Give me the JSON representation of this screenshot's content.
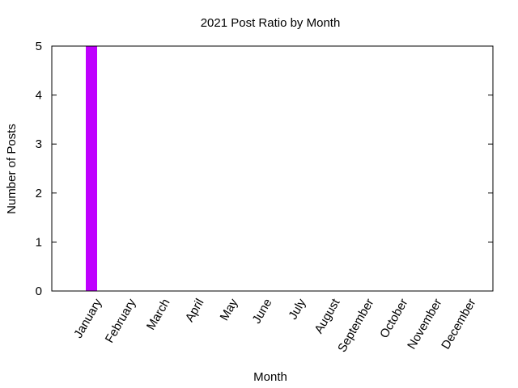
{
  "chart_data": {
    "type": "bar",
    "title": "2021 Post Ratio by Month",
    "xlabel": "Month",
    "ylabel": "Number of Posts",
    "categories": [
      "January",
      "February",
      "March",
      "April",
      "May",
      "June",
      "July",
      "August",
      "September",
      "October",
      "November",
      "December"
    ],
    "values": [
      5,
      0,
      0,
      0,
      0,
      0,
      0,
      0,
      0,
      0,
      0,
      0
    ],
    "ylim": [
      0,
      5
    ],
    "yticks": [
      0,
      1,
      2,
      3,
      4,
      5
    ],
    "bar_color": "#bf00ff",
    "grid": false,
    "legend": "none"
  }
}
